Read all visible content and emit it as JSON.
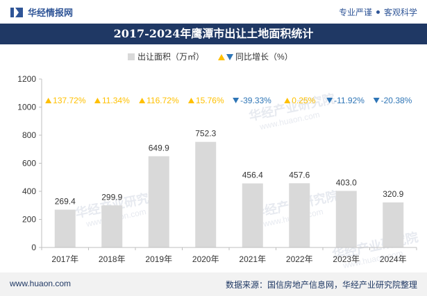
{
  "header": {
    "brand_name": "华经情报网",
    "tag_left": "专业严谨",
    "tag_right": "客观科学"
  },
  "footer": {
    "website": "www.huaon.com",
    "source": "数据来源：国信房地产信息网，华经产业研究院整理"
  },
  "watermark": {
    "text": "华经产业研究院",
    "url": "www.huaon.com"
  },
  "colors": {
    "bar": "#d9d9d9",
    "up": "#ffc000",
    "down": "#2e75b6",
    "title_band": "#1f3864",
    "brand": "#2f5597"
  },
  "chart_data": {
    "type": "bar",
    "title": "2017-2024年鹰潭市出让土地面积统计",
    "categories": [
      "2017年",
      "2018年",
      "2019年",
      "2020年",
      "2021年",
      "2022年",
      "2023年",
      "2024年"
    ],
    "series": [
      {
        "name": "出让面积（万㎡）",
        "values": [
          269.4,
          299.9,
          649.9,
          752.3,
          456.4,
          457.6,
          403.0,
          320.9
        ]
      }
    ],
    "bar_labels": [
      "269.4",
      "299.9",
      "649.9",
      "752.3",
      "456.4",
      "457.6",
      "403.0",
      "320.9"
    ],
    "growth": {
      "name": "同比增长（%）",
      "values": [
        137.72,
        11.34,
        116.72,
        15.76,
        -39.33,
        0.25,
        -11.92,
        -20.38
      ],
      "labels": [
        "137.72%",
        "11.34%",
        "116.72%",
        "15.76%",
        "-39.33%",
        "0.25%",
        "-11.92%",
        "-20.38%"
      ]
    },
    "ylim": [
      0,
      1200
    ],
    "yticks": [
      0,
      200,
      400,
      600,
      800,
      1000,
      1200
    ],
    "grid": false,
    "legend_position": "top-center"
  }
}
